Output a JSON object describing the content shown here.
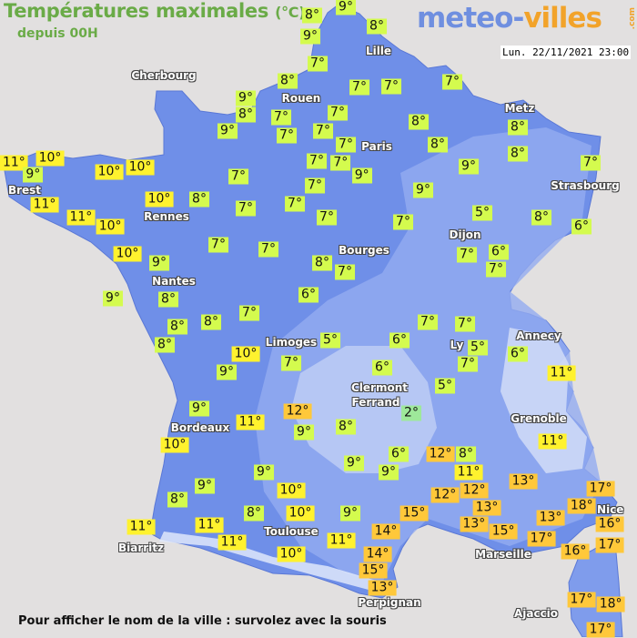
{
  "header": {
    "title": "Températures maximales",
    "unit": "(°C)",
    "subtitle": "depuis 00H",
    "logo_part1": "meteo-",
    "logo_part2": "villes",
    "logo_suffix": ".com",
    "datetime": "Lun. 22/11/2021 23:00"
  },
  "footer": {
    "hint": "Pour afficher le nom de la ville : survolez avec la souris"
  },
  "colors": {
    "background": "#e2e0e0",
    "land": "#6f8fe8",
    "title_green": "#6aab47",
    "temp_cold": "#9ee89a",
    "temp_mild": "#d4fb4e",
    "temp_warm": "#fff22e",
    "temp_hot": "#ffc83a"
  },
  "cities": [
    "Cherbourg",
    "Rouen",
    "Lille",
    "Paris",
    "Metz",
    "Strasbourg",
    "Brest",
    "Rennes",
    "Dijon",
    "Bourges",
    "Nantes",
    "Limoges",
    "Annecy",
    "Ly",
    "Clermont",
    "Ferrand",
    "Grenoble",
    "Bordeaux",
    "Toulouse",
    "Marseille",
    "Nice",
    "Biarritz",
    "Perpignan",
    "Ajaccio"
  ],
  "temps": [
    "8°",
    "9°",
    "9°",
    "8°",
    "7°",
    "8°",
    "9°",
    "8°",
    "7°",
    "9°",
    "7°",
    "7°",
    "7°",
    "7°",
    "7°",
    "7°",
    "7°",
    "8°",
    "8°",
    "8°",
    "8°",
    "7°",
    "9°",
    "9°",
    "7°",
    "7°",
    "7°",
    "9°",
    "7°",
    "7°",
    "7°",
    "5°",
    "8°",
    "6°",
    "7°",
    "6°",
    "7°",
    "8°",
    "7°",
    "6°",
    "7°",
    "7°",
    "7°",
    "8°",
    "7°",
    "10°",
    "10°",
    "10°",
    "11°",
    "9°",
    "10°",
    "11°",
    "11°",
    "10°",
    "10°",
    "9°",
    "9°",
    "8°",
    "8°",
    "8°",
    "8°",
    "7°",
    "10°",
    "9°",
    "7°",
    "5°",
    "6°",
    "7°",
    "7°",
    "5°",
    "7°",
    "6°",
    "11°",
    "6°",
    "5°",
    "2°",
    "8°",
    "12°",
    "9°",
    "11°",
    "9°",
    "10°",
    "9°",
    "10°",
    "8°",
    "9°",
    "8°",
    "10°",
    "9°",
    "11°",
    "10°",
    "11°",
    "11°",
    "11°",
    "6°",
    "9°",
    "9°",
    "12°",
    "8°",
    "11°",
    "12°",
    "12°",
    "13°",
    "13°",
    "15°",
    "13°",
    "11°",
    "15°",
    "14°",
    "14°",
    "15°",
    "13°",
    "13°",
    "17°",
    "16°",
    "18°",
    "17°",
    "16°",
    "17°",
    "17°",
    "18°",
    "17°"
  ]
}
